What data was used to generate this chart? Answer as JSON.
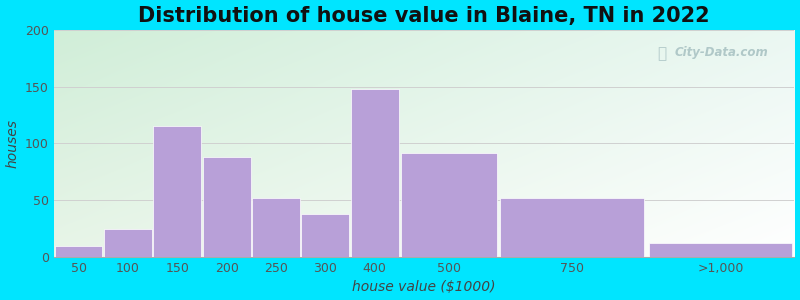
{
  "title": "Distribution of house value in Blaine, TN in 2022",
  "xlabel": "house value ($1000)",
  "ylabel": "houses",
  "bar_labels": [
    "50",
    "100",
    "150",
    "200",
    "250",
    "300",
    "400",
    "500",
    "750",
    ">1,000"
  ],
  "bar_heights": [
    10,
    25,
    115,
    88,
    52,
    38,
    148,
    92,
    52,
    12
  ],
  "bar_color": "#b8a0d8",
  "bar_edge_color": "#ffffff",
  "bg_outer": "#00e5ff",
  "bg_plot_topleft": "#d0eed8",
  "bg_plot_topright": "#e8f8f0",
  "bg_plot_bottomleft": "#e8f4e8",
  "bg_plot_bottomright": "#ffffff",
  "ylim": [
    0,
    200
  ],
  "yticks": [
    0,
    50,
    100,
    150,
    200
  ],
  "grid_color": "#d0d0d0",
  "title_fontsize": 15,
  "axis_label_fontsize": 10,
  "tick_fontsize": 9,
  "watermark_text": "City-Data.com",
  "watermark_color": "#b0c8c8",
  "x_edges": [
    0,
    1,
    2,
    3,
    4,
    5,
    6,
    7,
    9,
    12,
    15
  ]
}
